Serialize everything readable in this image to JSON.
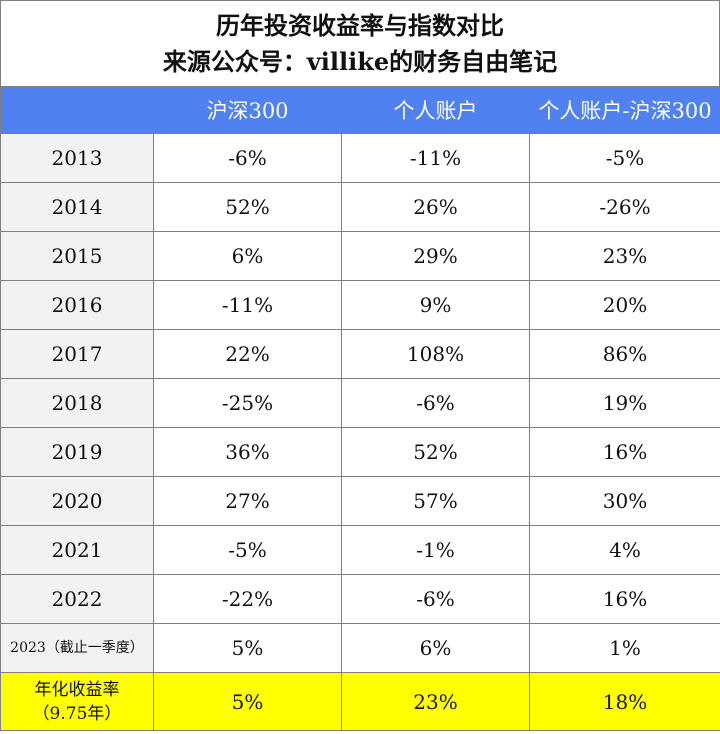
{
  "title": {
    "line1": "历年投资收益率与指数对比",
    "line2": "来源公众号：villike的财务自由笔记"
  },
  "columns": [
    "",
    "沪深300",
    "个人账户",
    "个人账户-沪深300"
  ],
  "rows": [
    {
      "year": "2013",
      "hs300": "-6%",
      "personal": "-11%",
      "diff": "-5%"
    },
    {
      "year": "2014",
      "hs300": "52%",
      "personal": "26%",
      "diff": "-26%"
    },
    {
      "year": "2015",
      "hs300": "6%",
      "personal": "29%",
      "diff": "23%"
    },
    {
      "year": "2016",
      "hs300": "-11%",
      "personal": "9%",
      "diff": "20%"
    },
    {
      "year": "2017",
      "hs300": "22%",
      "personal": "108%",
      "diff": "86%"
    },
    {
      "year": "2018",
      "hs300": "-25%",
      "personal": "-6%",
      "diff": "19%"
    },
    {
      "year": "2019",
      "hs300": "36%",
      "personal": "52%",
      "diff": "16%"
    },
    {
      "year": "2020",
      "hs300": "27%",
      "personal": "57%",
      "diff": "30%"
    },
    {
      "year": "2021",
      "hs300": "-5%",
      "personal": "-1%",
      "diff": "4%"
    },
    {
      "year": "2022",
      "hs300": "-22%",
      "personal": "-6%",
      "diff": "16%"
    },
    {
      "year": "2023（截止一季度）",
      "hs300": "5%",
      "personal": "6%",
      "diff": "1%"
    }
  ],
  "summary": {
    "label_line1": "年化收益率",
    "label_line2": "（9.75年）",
    "hs300": "5%",
    "personal": "23%",
    "diff": "18%"
  },
  "colors": {
    "header_bg": "#4f81f0",
    "header_text": "#ffffff",
    "year_col_bg": "#f2f2f2",
    "summary_bg": "#ffff00",
    "border": "#7f7f7f"
  }
}
